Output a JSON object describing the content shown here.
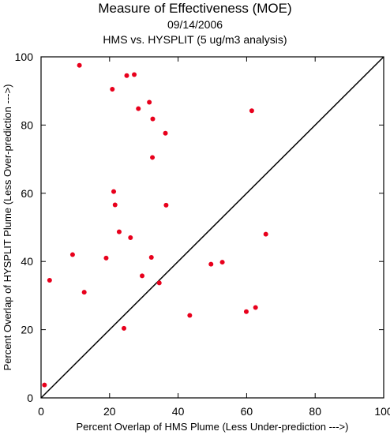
{
  "chart_data": {
    "type": "scatter",
    "title": "Measure of Effectiveness (MOE)",
    "subtitle_date": "09/14/2006",
    "subtitle_analysis": "HMS vs. HYSPLIT  (5 ug/m3 analysis)",
    "xlabel": "Percent Overlap of HMS Plume (Less Under-prediction --->)",
    "ylabel": "Percent Overlap of HYSPLIT Plume (Less Over-prediction --->)",
    "xlim": [
      0,
      100
    ],
    "ylim": [
      0,
      100
    ],
    "xticks": [
      "0",
      "20",
      "40",
      "60",
      "80",
      "100"
    ],
    "yticks": [
      "0",
      "20",
      "40",
      "60",
      "80",
      "100"
    ],
    "reference_line": "y = x",
    "point_color": "#e8001c",
    "points": [
      {
        "x": 1.0,
        "y": 3.8
      },
      {
        "x": 2.5,
        "y": 34.5
      },
      {
        "x": 9.2,
        "y": 42.0
      },
      {
        "x": 11.2,
        "y": 97.5
      },
      {
        "x": 12.6,
        "y": 31.0
      },
      {
        "x": 19.0,
        "y": 41.0
      },
      {
        "x": 20.8,
        "y": 90.5
      },
      {
        "x": 21.2,
        "y": 60.5
      },
      {
        "x": 21.6,
        "y": 56.6
      },
      {
        "x": 22.8,
        "y": 48.7
      },
      {
        "x": 24.2,
        "y": 20.4
      },
      {
        "x": 25.0,
        "y": 94.5
      },
      {
        "x": 26.1,
        "y": 47.0
      },
      {
        "x": 27.2,
        "y": 94.8
      },
      {
        "x": 28.4,
        "y": 84.8
      },
      {
        "x": 29.5,
        "y": 35.8
      },
      {
        "x": 31.6,
        "y": 86.7
      },
      {
        "x": 32.2,
        "y": 41.2
      },
      {
        "x": 32.5,
        "y": 70.5
      },
      {
        "x": 32.6,
        "y": 81.8
      },
      {
        "x": 34.5,
        "y": 33.7
      },
      {
        "x": 36.3,
        "y": 77.6
      },
      {
        "x": 36.5,
        "y": 56.5
      },
      {
        "x": 43.4,
        "y": 24.2
      },
      {
        "x": 49.6,
        "y": 39.2
      },
      {
        "x": 52.9,
        "y": 39.8
      },
      {
        "x": 59.9,
        "y": 25.3
      },
      {
        "x": 61.5,
        "y": 84.2
      },
      {
        "x": 62.6,
        "y": 26.5
      },
      {
        "x": 65.6,
        "y": 48.0
      }
    ]
  }
}
